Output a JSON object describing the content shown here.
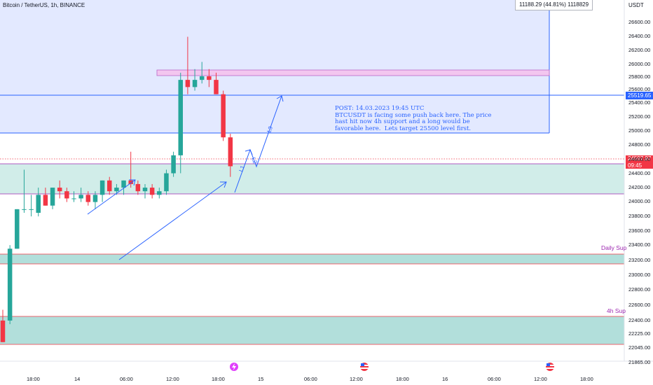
{
  "header": {
    "symbol_title": "Bitcoin / TetherUS, 1h, BINANCE",
    "currency": "USDT",
    "measure": "11188.29 (44.81%) 1118829"
  },
  "price_axis": {
    "ticks": [
      "26600.00",
      "26400.00",
      "26200.00",
      "26000.00",
      "25800.00",
      "25600.00",
      "25400.00",
      "25200.00",
      "25000.00",
      "24800.00",
      "24600.00",
      "24400.00",
      "24200.00",
      "24000.00",
      "23800.00",
      "23600.00",
      "23400.00",
      "23200.00",
      "23000.00",
      "22800.00",
      "22600.00",
      "22400.00",
      "22225.00",
      "22045.00",
      "21865.00"
    ],
    "line_price_label": "25519.65",
    "last_price_label": "24597.97",
    "countdown": "09:45"
  },
  "time_axis": {
    "ticks": [
      "18:00",
      "14",
      "06:00",
      "12:00",
      "18:00",
      "15",
      "06:00",
      "12:00",
      "18:00",
      "16",
      "06:00",
      "12:00",
      "18:00"
    ]
  },
  "annotations": {
    "post_note": "POST: 14.03.2023 19:45 UTC\nBTCUSDT is facing some push back here. The price hast hit now 4h support and a long would be favorable here.  Lets target 25500 level first.",
    "zone_daily": "Daily Sup",
    "zone_4h": "4h Sup",
    "wave_labels": [
      "L1",
      "L2",
      "L3"
    ]
  },
  "colors": {
    "up": "#26a69a",
    "down": "#f23645",
    "zone_fill": "#b2dfdb",
    "blue_box": "#2962ff",
    "resistance": "#e1bee7",
    "arrow": "#2962ff"
  },
  "chart_data": {
    "type": "candlestick",
    "symbol": "BTCUSDT",
    "timeframe": "1h",
    "candles": [
      {
        "o": 22450,
        "h": 22600,
        "l": 22150,
        "c": 22150
      },
      {
        "o": 22450,
        "h": 23500,
        "l": 22400,
        "c": 23450
      },
      {
        "o": 23450,
        "h": 24000,
        "l": 23450,
        "c": 24000
      },
      {
        "o": 24000,
        "h": 24550,
        "l": 23950,
        "c": 24000
      },
      {
        "o": 24000,
        "h": 24200,
        "l": 23900,
        "c": 24000
      },
      {
        "o": 23950,
        "h": 24300,
        "l": 23900,
        "c": 24200
      },
      {
        "o": 24200,
        "h": 24300,
        "l": 24050,
        "c": 24050
      },
      {
        "o": 24050,
        "h": 24300,
        "l": 24000,
        "c": 24300
      },
      {
        "o": 24300,
        "h": 24400,
        "l": 24150,
        "c": 24250
      },
      {
        "o": 24250,
        "h": 24300,
        "l": 24100,
        "c": 24150
      },
      {
        "o": 24150,
        "h": 24250,
        "l": 24100,
        "c": 24150
      },
      {
        "o": 24150,
        "h": 24300,
        "l": 24100,
        "c": 24200
      },
      {
        "o": 24200,
        "h": 24250,
        "l": 24050,
        "c": 24100
      },
      {
        "o": 24100,
        "h": 24250,
        "l": 24000,
        "c": 24200
      },
      {
        "o": 24200,
        "h": 24400,
        "l": 24100,
        "c": 24400
      },
      {
        "o": 24400,
        "h": 24450,
        "l": 24200,
        "c": 24250
      },
      {
        "o": 24250,
        "h": 24350,
        "l": 24200,
        "c": 24300
      },
      {
        "o": 24300,
        "h": 24400,
        "l": 24200,
        "c": 24400
      },
      {
        "o": 24400,
        "h": 24800,
        "l": 24300,
        "c": 24350
      },
      {
        "o": 24350,
        "h": 24400,
        "l": 24200,
        "c": 24250
      },
      {
        "o": 24250,
        "h": 24350,
        "l": 24150,
        "c": 24300
      },
      {
        "o": 24300,
        "h": 24350,
        "l": 24150,
        "c": 24200
      },
      {
        "o": 24200,
        "h": 24300,
        "l": 24150,
        "c": 24250
      },
      {
        "o": 24250,
        "h": 24550,
        "l": 24200,
        "c": 24500
      },
      {
        "o": 24500,
        "h": 24800,
        "l": 24450,
        "c": 24750
      },
      {
        "o": 24750,
        "h": 25900,
        "l": 24500,
        "c": 25800
      },
      {
        "o": 25800,
        "h": 26400,
        "l": 25600,
        "c": 25700
      },
      {
        "o": 25700,
        "h": 25950,
        "l": 25650,
        "c": 25800
      },
      {
        "o": 25800,
        "h": 26050,
        "l": 25750,
        "c": 25850
      },
      {
        "o": 25850,
        "h": 25950,
        "l": 25700,
        "c": 25800
      },
      {
        "o": 25800,
        "h": 25900,
        "l": 25600,
        "c": 25600
      },
      {
        "o": 25600,
        "h": 25650,
        "l": 24950,
        "c": 25000
      },
      {
        "o": 25000,
        "h": 25050,
        "l": 24450,
        "c": 24598
      }
    ]
  }
}
